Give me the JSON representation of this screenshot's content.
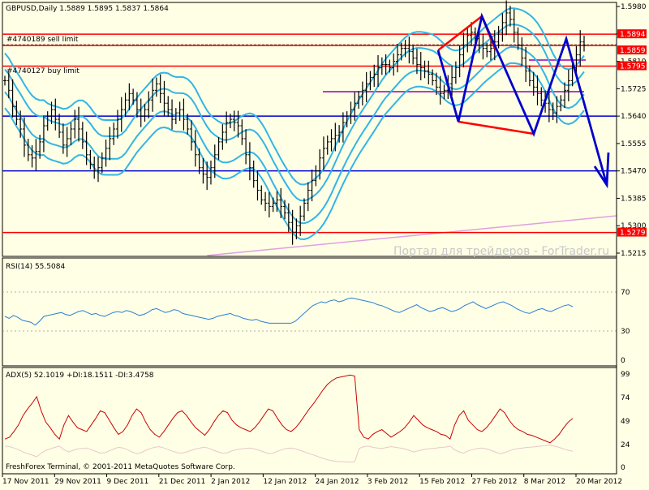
{
  "header": {
    "symbol_line": "GBPUSD,Daily  1.5889 1.5895 1.5837 1.5864"
  },
  "orders": {
    "sell_limit": "#4740189 sell limit",
    "buy_limit": "#4740127 buy limit"
  },
  "price_tags": [
    "1.5894",
    "1.5859",
    "1.5795",
    "1.5279"
  ],
  "price_axis_ticks": [
    "1.5980",
    "1.5895",
    "1.5810",
    "1.5725",
    "1.5640",
    "1.5555",
    "1.5470",
    "1.5385",
    "1.5300",
    "1.5215"
  ],
  "watermark": "Портал для трейдеров - ForTrader.ru",
  "rsi": {
    "label": "RSI(14) 55.5084",
    "ticks": [
      "70",
      "30",
      "0"
    ]
  },
  "adx": {
    "label": "ADX(5) 52.1019 +DI:18.1511 -DI:3.4758",
    "ticks": [
      "99",
      "74",
      "49",
      "24",
      "0"
    ]
  },
  "copyright": "FreshForex Terminal, © 2001-2011 MetaQuotes Software Corp.",
  "x_ticks": [
    "17 Nov 2011",
    "29 Nov 2011",
    "9 Dec 2011",
    "21 Dec 2011",
    "2 Jan 2012",
    "12 Jan 2012",
    "24 Jan 2012",
    "3 Feb 2012",
    "15 Feb 2012",
    "27 Feb 2012",
    "8 Mar 2012",
    "20 Mar 2012"
  ],
  "colors": {
    "background": "#ffffe6",
    "bars": "#000000",
    "bands": "#33b5e5",
    "red_lines": "#ff0000",
    "blue_lines": "#0000cc",
    "purple_lines": "#b040c0",
    "pink_trend": "#e0a0e0",
    "rsi_line": "#2a7fd4",
    "adx_line": "#cc0000",
    "tag_red": "#ff0000"
  },
  "chart_data": [
    {
      "type": "candlestick-ohlc",
      "title": "GBPUSD,Daily",
      "last_ohlc": {
        "open": 1.5889,
        "high": 1.5895,
        "low": 1.5837,
        "close": 1.5864
      },
      "ylim": [
        1.5215,
        1.598
      ],
      "close_series": [
        1.575,
        1.572,
        1.567,
        1.563,
        1.56,
        1.555,
        1.552,
        1.551,
        1.553,
        1.556,
        1.561,
        1.564,
        1.566,
        1.563,
        1.559,
        1.555,
        1.557,
        1.56,
        1.563,
        1.56,
        1.556,
        1.552,
        1.549,
        1.547,
        1.548,
        1.551,
        1.554,
        1.557,
        1.56,
        1.563,
        1.566,
        1.569,
        1.571,
        1.569,
        1.566,
        1.564,
        1.566,
        1.569,
        1.572,
        1.574,
        1.571,
        1.568,
        1.566,
        1.563,
        1.565,
        1.566,
        1.563,
        1.56,
        1.556,
        1.552,
        1.548,
        1.546,
        1.545,
        1.548,
        1.552,
        1.556,
        1.559,
        1.562,
        1.563,
        1.562,
        1.561,
        1.557,
        1.552,
        1.548,
        1.544,
        1.541,
        1.538,
        1.537,
        1.536,
        1.537,
        1.538,
        1.536,
        1.534,
        1.531,
        1.528,
        1.53,
        1.533,
        1.537,
        1.541,
        1.544,
        1.547,
        1.551,
        1.554,
        1.556,
        1.557,
        1.558,
        1.559,
        1.562,
        1.564,
        1.566,
        1.568,
        1.57,
        1.572,
        1.574,
        1.576,
        1.577,
        1.579,
        1.58,
        1.58,
        1.579,
        1.581,
        1.583,
        1.585,
        1.585,
        1.584,
        1.582,
        1.58,
        1.579,
        1.578,
        1.577,
        1.575,
        1.573,
        1.571,
        1.572,
        1.574,
        1.576,
        1.579,
        1.583,
        1.586,
        1.589,
        1.59,
        1.588,
        1.586,
        1.585,
        1.584,
        1.585,
        1.587,
        1.59,
        1.593,
        1.596,
        1.594,
        1.59,
        1.586,
        1.582,
        1.578,
        1.575,
        1.573,
        1.571,
        1.569,
        1.568,
        1.566,
        1.565,
        1.567,
        1.569,
        1.572,
        1.575,
        1.579,
        1.583,
        1.587,
        1.586
      ],
      "levels": [
        {
          "name": "sell limit",
          "value": 1.5894
        },
        {
          "name": "",
          "value": 1.5859
        },
        {
          "name": "buy limit",
          "value": 1.5795
        },
        {
          "name": "",
          "value": 1.5279
        },
        {
          "name": "",
          "value": 1.564
        },
        {
          "name": "",
          "value": 1.547
        }
      ]
    },
    {
      "type": "line",
      "title": "RSI(14) 55.5084",
      "ylim": [
        0,
        100
      ],
      "levels": [
        70,
        30
      ],
      "values": [
        45,
        43,
        46,
        44,
        41,
        40,
        39,
        36,
        40,
        45,
        46,
        47,
        48,
        49,
        47,
        46,
        48,
        50,
        51,
        49,
        47,
        48,
        46,
        45,
        47,
        49,
        50,
        49,
        51,
        50,
        48,
        46,
        47,
        49,
        52,
        53,
        51,
        49,
        50,
        52,
        51,
        48,
        47,
        46,
        45,
        44,
        43,
        42,
        43,
        45,
        46,
        47,
        48,
        46,
        45,
        43,
        42,
        41,
        42,
        40,
        39,
        38,
        38,
        38,
        38,
        38,
        38,
        40,
        44,
        48,
        52,
        56,
        58,
        60,
        59,
        61,
        62,
        60,
        61,
        63,
        64,
        63,
        62,
        61,
        60,
        59,
        57,
        56,
        54,
        52,
        50,
        49,
        51,
        53,
        55,
        57,
        54,
        52,
        50,
        51,
        53,
        54,
        52,
        50,
        51,
        53,
        56,
        58,
        60,
        57,
        55,
        53,
        55,
        57,
        59,
        60,
        58,
        56,
        53,
        51,
        49,
        48,
        50,
        52,
        53,
        51,
        50,
        52,
        54,
        56,
        57,
        55
      ]
    },
    {
      "type": "line",
      "title": "ADX(5) 52.1019 +DI:18.1511 -DI:3.4758",
      "ylim": [
        0,
        100
      ],
      "values": [
        30,
        32,
        38,
        45,
        55,
        62,
        68,
        75,
        60,
        48,
        42,
        35,
        30,
        45,
        55,
        48,
        42,
        40,
        38,
        45,
        52,
        60,
        58,
        50,
        42,
        35,
        38,
        45,
        55,
        62,
        58,
        48,
        40,
        35,
        32,
        38,
        45,
        52,
        58,
        60,
        55,
        48,
        42,
        38,
        34,
        40,
        48,
        55,
        60,
        58,
        50,
        45,
        42,
        40,
        38,
        42,
        48,
        55,
        62,
        60,
        52,
        45,
        40,
        38,
        42,
        48,
        55,
        62,
        68,
        75,
        82,
        88,
        92,
        95,
        96,
        97,
        98,
        97,
        40,
        32,
        30,
        35,
        38,
        40,
        36,
        32,
        35,
        38,
        42,
        48,
        55,
        50,
        45,
        42,
        40,
        38,
        35,
        34,
        30,
        45,
        55,
        60,
        50,
        45,
        40,
        38,
        42,
        48,
        55,
        62,
        58,
        50,
        44,
        40,
        38,
        35,
        34,
        32,
        30,
        28,
        26,
        30,
        35,
        42,
        48,
        52
      ]
    }
  ]
}
